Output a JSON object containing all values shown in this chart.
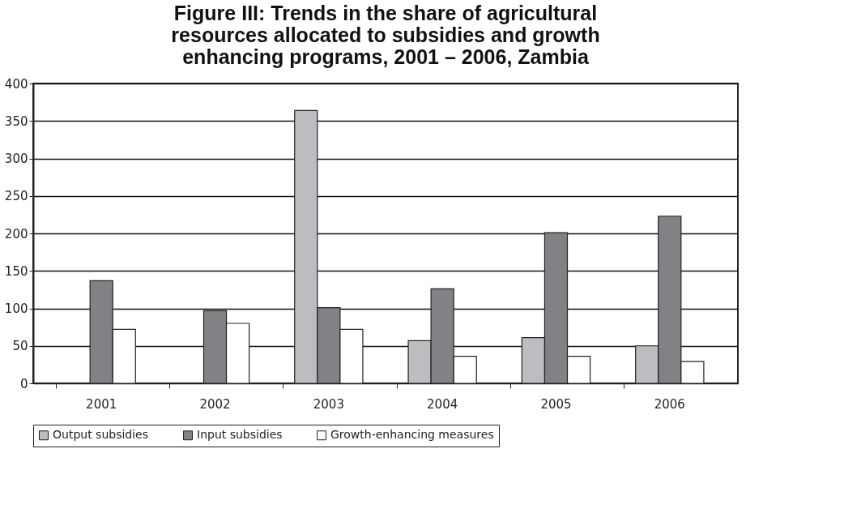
{
  "chart_data": {
    "type": "bar",
    "title": [
      "Figure III: Trends in the share of agricultural",
      "resources allocated to subsidies and growth",
      "enhancing programs, 2001 – 2006, Zambia"
    ],
    "categories": [
      "2001",
      "2002",
      "2003",
      "2004",
      "2005",
      "2006"
    ],
    "series": [
      {
        "name": "Output subsidies",
        "color": "#bcbdc0",
        "values": [
          null,
          null,
          364,
          57,
          61,
          50
        ]
      },
      {
        "name": "Input subsidies",
        "color": "#818285",
        "values": [
          137,
          97,
          101,
          126,
          201,
          223
        ]
      },
      {
        "name": "Growth-enhancing measures",
        "color": "#ffffff",
        "values": [
          72,
          80,
          72,
          36,
          36,
          29
        ]
      }
    ],
    "ylim": [
      0,
      400
    ],
    "yticks": [
      0,
      50,
      100,
      150,
      200,
      250,
      300,
      350,
      400
    ],
    "grid": "y",
    "legend": "bottom"
  }
}
